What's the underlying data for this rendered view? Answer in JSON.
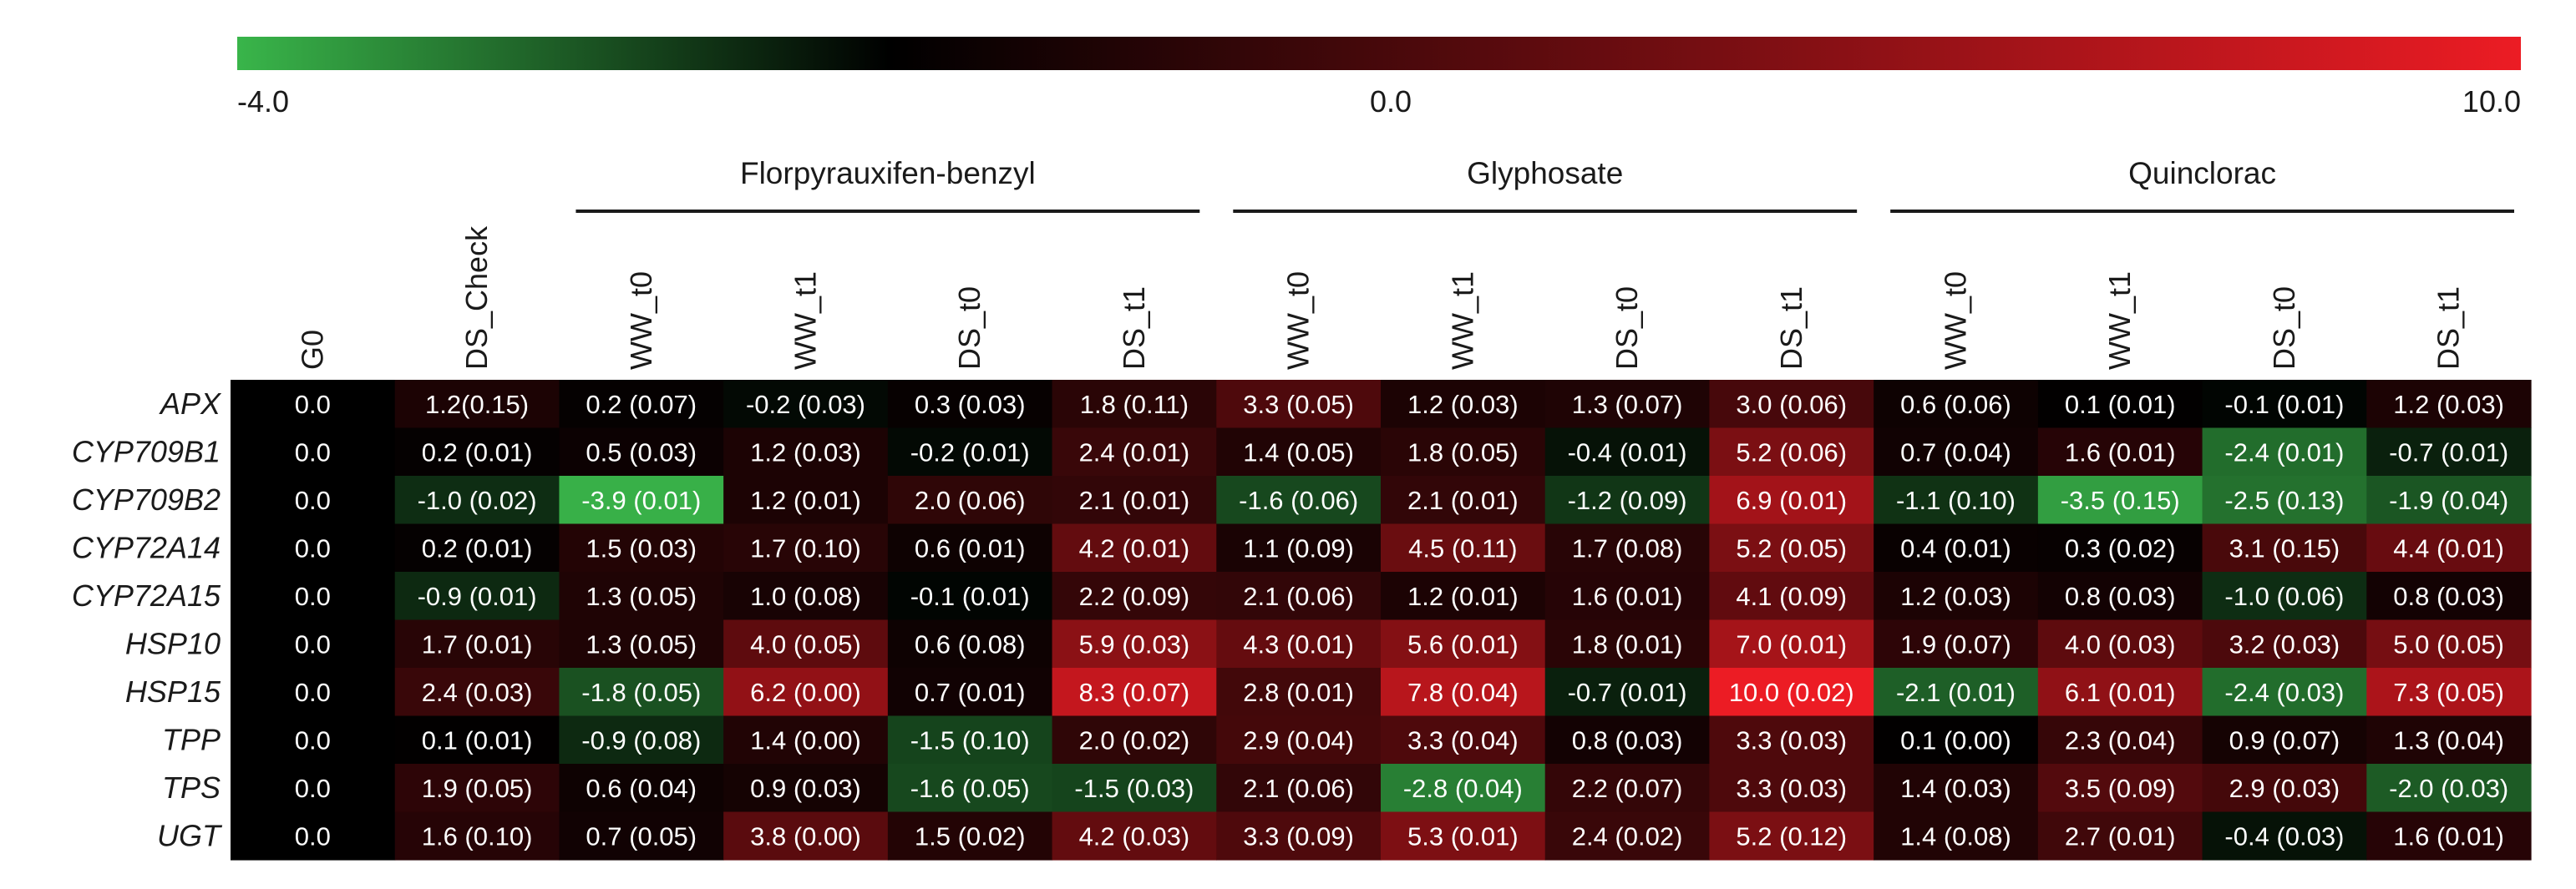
{
  "chart_data": {
    "type": "heatmap",
    "title": "",
    "color_scale": {
      "min": -4.0,
      "mid": 0.0,
      "max": 10.0,
      "min_label": "-4.0",
      "mid_label": "0.0",
      "max_label": "10.0",
      "min_color": "#39b54a",
      "mid_color": "#000000",
      "max_color": "#ec1c24"
    },
    "groups": [
      {
        "label": "Florpyrauxifen-benzyl",
        "first_col": 2,
        "last_col": 5
      },
      {
        "label": "Glyphosate",
        "first_col": 6,
        "last_col": 9
      },
      {
        "label": "Quinclorac",
        "first_col": 10,
        "last_col": 13
      }
    ],
    "columns": [
      "G0",
      "DS_Check",
      "WW_t0",
      "WW_t1",
      "DS_t0",
      "DS_t1",
      "WW_t0",
      "WW_t1",
      "DS_t0",
      "DS_t1",
      "WW_t0",
      "WW_t1",
      "DS_t0",
      "DS_t1"
    ],
    "rows": [
      "APX",
      "CYP709B1",
      "CYP709B2",
      "CYP72A14",
      "CYP72A15",
      "HSP10",
      "HSP15",
      "TPP",
      "TPS",
      "UGT"
    ],
    "values": [
      [
        0.0,
        1.2,
        0.2,
        -0.2,
        0.3,
        1.8,
        3.3,
        1.2,
        1.3,
        3.0,
        0.6,
        0.1,
        -0.1,
        1.2
      ],
      [
        0.0,
        0.2,
        0.5,
        1.2,
        -0.2,
        2.4,
        1.4,
        1.8,
        -0.4,
        5.2,
        0.7,
        1.6,
        -2.4,
        -0.7
      ],
      [
        0.0,
        -1.0,
        -3.9,
        1.2,
        2.0,
        2.1,
        -1.6,
        2.1,
        -1.2,
        6.9,
        -1.1,
        -3.5,
        -2.5,
        -1.9
      ],
      [
        0.0,
        0.2,
        1.5,
        1.7,
        0.6,
        4.2,
        1.1,
        4.5,
        1.7,
        5.2,
        0.4,
        0.3,
        3.1,
        4.4
      ],
      [
        0.0,
        -0.9,
        1.3,
        1.0,
        -0.1,
        2.2,
        2.1,
        1.2,
        1.6,
        4.1,
        1.2,
        0.8,
        -1.0,
        0.8
      ],
      [
        0.0,
        1.7,
        1.3,
        4.0,
        0.6,
        5.9,
        4.3,
        5.6,
        1.8,
        7.0,
        1.9,
        4.0,
        3.2,
        5.0
      ],
      [
        0.0,
        2.4,
        -1.8,
        6.2,
        0.7,
        8.3,
        2.8,
        7.8,
        -0.7,
        10.0,
        -2.1,
        6.1,
        -2.4,
        7.3
      ],
      [
        0.0,
        0.1,
        -0.9,
        1.4,
        -1.5,
        2.0,
        2.9,
        3.3,
        0.8,
        3.3,
        0.1,
        2.3,
        0.9,
        1.3
      ],
      [
        0.0,
        1.9,
        0.6,
        0.9,
        -1.6,
        -1.5,
        2.1,
        -2.8,
        2.2,
        3.3,
        1.4,
        3.5,
        2.9,
        -2.0
      ],
      [
        0.0,
        1.6,
        0.7,
        3.8,
        1.5,
        4.2,
        3.3,
        5.3,
        2.4,
        5.2,
        1.4,
        2.7,
        -0.4,
        1.6
      ]
    ],
    "cell_labels": [
      [
        "0.0",
        "1.2(0.15)",
        "0.2 (0.07)",
        "-0.2 (0.03)",
        "0.3 (0.03)",
        "1.8 (0.11)",
        "3.3 (0.05)",
        "1.2 (0.03)",
        "1.3 (0.07)",
        "3.0 (0.06)",
        "0.6 (0.06)",
        "0.1 (0.01)",
        "-0.1 (0.01)",
        "1.2 (0.03)"
      ],
      [
        "0.0",
        "0.2 (0.01)",
        "0.5 (0.03)",
        "1.2 (0.03)",
        "-0.2 (0.01)",
        "2.4 (0.01)",
        "1.4 (0.05)",
        "1.8 (0.05)",
        "-0.4 (0.01)",
        "5.2 (0.06)",
        "0.7 (0.04)",
        "1.6 (0.01)",
        "-2.4 (0.01)",
        "-0.7 (0.01)"
      ],
      [
        "0.0",
        "-1.0 (0.02)",
        "-3.9 (0.01)",
        "1.2 (0.01)",
        "2.0 (0.06)",
        "2.1 (0.01)",
        "-1.6 (0.06)",
        "2.1 (0.01)",
        "-1.2 (0.09)",
        "6.9 (0.01)",
        "-1.1 (0.10)",
        "-3.5 (0.15)",
        "-2.5 (0.13)",
        "-1.9 (0.04)"
      ],
      [
        "0.0",
        "0.2 (0.01)",
        "1.5 (0.03)",
        "1.7 (0.10)",
        "0.6 (0.01)",
        "4.2 (0.01)",
        "1.1 (0.09)",
        "4.5 (0.11)",
        "1.7 (0.08)",
        "5.2 (0.05)",
        "0.4 (0.01)",
        "0.3 (0.02)",
        "3.1 (0.15)",
        "4.4 (0.01)"
      ],
      [
        "0.0",
        "-0.9 (0.01)",
        "1.3 (0.05)",
        "1.0 (0.08)",
        "-0.1 (0.01)",
        "2.2 (0.09)",
        "2.1 (0.06)",
        "1.2 (0.01)",
        "1.6 (0.01)",
        "4.1 (0.09)",
        "1.2 (0.03)",
        "0.8 (0.03)",
        "-1.0 (0.06)",
        "0.8 (0.03)"
      ],
      [
        "0.0",
        "1.7 (0.01)",
        "1.3 (0.05)",
        "4.0 (0.05)",
        "0.6 (0.08)",
        "5.9 (0.03)",
        "4.3 (0.01)",
        "5.6 (0.01)",
        "1.8 (0.01)",
        "7.0 (0.01)",
        "1.9 (0.07)",
        "4.0 (0.03)",
        "3.2 (0.03)",
        "5.0 (0.05)"
      ],
      [
        "0.0",
        "2.4 (0.03)",
        "-1.8 (0.05)",
        "6.2 (0.00)",
        "0.7 (0.01)",
        "8.3 (0.07)",
        "2.8 (0.01)",
        "7.8 (0.04)",
        "-0.7 (0.01)",
        "10.0 (0.02)",
        "-2.1 (0.01)",
        "6.1 (0.01)",
        "-2.4 (0.03)",
        "7.3 (0.05)"
      ],
      [
        "0.0",
        "0.1 (0.01)",
        "-0.9 (0.08)",
        "1.4 (0.00)",
        "-1.5 (0.10)",
        "2.0 (0.02)",
        "2.9 (0.04)",
        "3.3 (0.04)",
        "0.8 (0.03)",
        "3.3 (0.03)",
        "0.1 (0.00)",
        "2.3 (0.04)",
        "0.9 (0.07)",
        "1.3 (0.04)"
      ],
      [
        "0.0",
        "1.9 (0.05)",
        "0.6 (0.04)",
        "0.9 (0.03)",
        "-1.6 (0.05)",
        "-1.5 (0.03)",
        "2.1 (0.06)",
        "-2.8 (0.04)",
        "2.2 (0.07)",
        "3.3 (0.03)",
        "1.4 (0.03)",
        "3.5 (0.09)",
        "2.9 (0.03)",
        "-2.0 (0.03)"
      ],
      [
        "0.0",
        "1.6 (0.10)",
        "0.7 (0.05)",
        "3.8 (0.00)",
        "1.5 (0.02)",
        "4.2 (0.03)",
        "3.3 (0.09)",
        "5.3 (0.01)",
        "2.4 (0.02)",
        "5.2 (0.12)",
        "1.4 (0.08)",
        "2.7 (0.01)",
        "-0.4 (0.03)",
        "1.6 (0.01)"
      ]
    ]
  }
}
